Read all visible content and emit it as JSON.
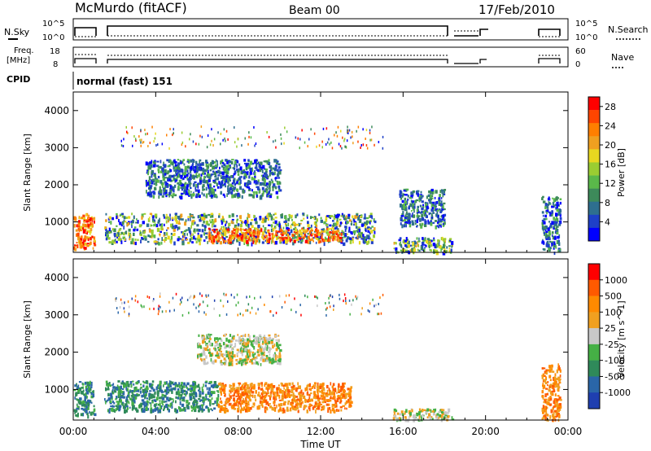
{
  "header": {
    "title": "McMurdo (fitACF)",
    "beam": "Beam 00",
    "date": "17/Feb/2010"
  },
  "status_panels": {
    "nsky_label": "N.Sky",
    "nsky_ticks": [
      "10^5",
      "10^0"
    ],
    "nsearch_label": "N.Search",
    "nsearch_ticks": [
      "10^5",
      "10^0"
    ],
    "freq_label": "Freq.",
    "freq_unit": "[MHz]",
    "freq_ticks": [
      "18",
      "8"
    ],
    "nave_label": "Nave",
    "nave_ticks": [
      "60",
      "0"
    ],
    "cpid_label": "CPID",
    "cpid_value": "normal (fast) 151"
  },
  "chart_data": [
    {
      "type": "heatmap",
      "panel": "power",
      "ylabel": "Slant Range [km]",
      "yticks": [
        "1000",
        "2000",
        "3000",
        "4000"
      ],
      "xticks": [
        "00:00",
        "04:00",
        "08:00",
        "12:00",
        "16:00",
        "20:00",
        "00:00"
      ],
      "ylim": [
        180,
        4500
      ],
      "xlim": [
        0,
        24
      ],
      "colorbar": {
        "label": "Power [dB]",
        "ticks": [
          "4",
          "8",
          "12",
          "16",
          "20",
          "24",
          "28"
        ],
        "colors": [
          "#0000ff",
          "#1e40c8",
          "#2e6f8f",
          "#3d8a5a",
          "#5ab84a",
          "#9acd32",
          "#e8d820",
          "#f0a020",
          "#ff7f00",
          "#ff4500",
          "#ff0000"
        ]
      },
      "echo_regions": [
        {
          "t": [
            0.0,
            1.0
          ],
          "range_km": [
            300,
            1250
          ],
          "level": "high"
        },
        {
          "t": [
            1.5,
            14.6
          ],
          "range_km": [
            450,
            1250
          ],
          "level": "mixed"
        },
        {
          "t": [
            6.5,
            13.0
          ],
          "range_km": [
            500,
            850
          ],
          "level": "high"
        },
        {
          "t": [
            3.5,
            10.0
          ],
          "range_km": [
            1700,
            2700
          ],
          "level": "low"
        },
        {
          "t": [
            15.5,
            18.4
          ],
          "range_km": [
            200,
            600
          ],
          "level": "mixed"
        },
        {
          "t": [
            15.8,
            18.0
          ],
          "range_km": [
            900,
            1900
          ],
          "level": "low"
        },
        {
          "t": [
            22.7,
            23.6
          ],
          "range_km": [
            200,
            1700
          ],
          "level": "low"
        }
      ]
    },
    {
      "type": "heatmap",
      "panel": "velocity",
      "ylabel": "Slant Range [km]",
      "yticks": [
        "1000",
        "2000",
        "3000",
        "4000"
      ],
      "xticks": [
        "00:00",
        "04:00",
        "08:00",
        "12:00",
        "16:00",
        "20:00",
        "00:00"
      ],
      "xlabel": "Time UT",
      "ylim": [
        180,
        4500
      ],
      "xlim": [
        0,
        24
      ],
      "colorbar": {
        "label": "Velocity [m s^-1]",
        "ticks": [
          "1000",
          "500",
          "100",
          "25",
          "-25",
          "-100",
          "-500",
          "-1000"
        ],
        "colors": [
          "#1f3fb0",
          "#2a66a8",
          "#2f8a5a",
          "#45b045",
          "#c8c8c8",
          "#f0a020",
          "#ff8a00",
          "#ff5a00",
          "#ff0000"
        ]
      },
      "echo_regions": [
        {
          "t": [
            0.0,
            1.0
          ],
          "range_km": [
            300,
            1250
          ],
          "level": "toward"
        },
        {
          "t": [
            1.5,
            7.0
          ],
          "range_km": [
            450,
            1250
          ],
          "level": "toward"
        },
        {
          "t": [
            7.0,
            13.5
          ],
          "range_km": [
            450,
            1200
          ],
          "level": "away"
        },
        {
          "t": [
            6.0,
            10.0
          ],
          "range_km": [
            1700,
            2500
          ],
          "level": "near-zero"
        },
        {
          "t": [
            15.5,
            18.4
          ],
          "range_km": [
            200,
            500
          ],
          "level": "near-zero"
        },
        {
          "t": [
            22.7,
            23.6
          ],
          "range_km": [
            200,
            1700
          ],
          "level": "away"
        }
      ]
    }
  ]
}
